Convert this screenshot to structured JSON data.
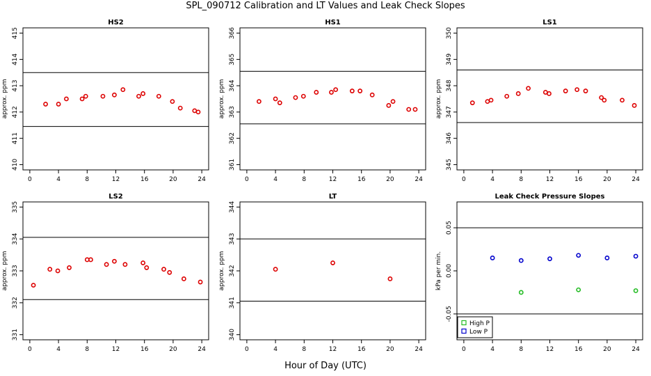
{
  "page": {
    "title": "SPL_090712  Calibration and LT Values and Leak Check Slopes",
    "x_axis_title": "Hour of Day (UTC)"
  },
  "colors": {
    "red": "#dd0000",
    "green": "#22bb22",
    "blue": "#0000cc",
    "line": "#000000"
  },
  "chart_data": [
    {
      "type": "scatter",
      "title": "HS2",
      "ylabel": "approx. ppm",
      "xlim": [
        0,
        24
      ],
      "ylim": [
        410,
        415
      ],
      "xticks": [
        0,
        4,
        8,
        12,
        16,
        20,
        24
      ],
      "yticks": [
        410,
        411,
        412,
        413,
        414,
        415
      ],
      "hlines": [
        413.5,
        411.45
      ],
      "series": [
        {
          "color": "red",
          "x": [
            2.2,
            4.0,
            5.1,
            7.3,
            7.8,
            10.2,
            11.8,
            13.0,
            15.2,
            15.8,
            18.0,
            19.9,
            21.0,
            23.0,
            23.5
          ],
          "y": [
            412.3,
            412.3,
            412.5,
            412.5,
            412.6,
            412.6,
            412.65,
            412.85,
            412.6,
            412.7,
            412.6,
            412.4,
            412.15,
            412.05,
            412.0
          ]
        }
      ]
    },
    {
      "type": "scatter",
      "title": "HS1",
      "ylabel": "approx. ppm",
      "xlim": [
        0,
        24
      ],
      "ylim": [
        361,
        366
      ],
      "xticks": [
        0,
        4,
        8,
        12,
        16,
        20,
        24
      ],
      "yticks": [
        361,
        362,
        363,
        364,
        365,
        366
      ],
      "hlines": [
        364.55,
        362.55
      ],
      "series": [
        {
          "color": "red",
          "x": [
            1.7,
            4.0,
            4.6,
            6.8,
            7.9,
            9.7,
            11.8,
            12.4,
            14.7,
            15.8,
            17.5,
            19.8,
            20.4,
            22.6,
            23.5
          ],
          "y": [
            363.4,
            363.5,
            363.35,
            363.55,
            363.6,
            363.75,
            363.75,
            363.85,
            363.8,
            363.8,
            363.65,
            363.25,
            363.4,
            363.1,
            363.1
          ]
        }
      ]
    },
    {
      "type": "scatter",
      "title": "LS1",
      "ylabel": "approx. ppm",
      "xlim": [
        0,
        24
      ],
      "ylim": [
        345,
        350
      ],
      "xticks": [
        0,
        4,
        8,
        12,
        16,
        20,
        24
      ],
      "yticks": [
        345,
        346,
        347,
        348,
        349,
        350
      ],
      "hlines": [
        348.6,
        346.6
      ],
      "series": [
        {
          "color": "red",
          "x": [
            1.2,
            3.3,
            3.8,
            6.0,
            7.6,
            9.0,
            11.4,
            11.9,
            14.2,
            15.8,
            17.0,
            19.2,
            19.6,
            22.1,
            23.8
          ],
          "y": [
            347.35,
            347.4,
            347.45,
            347.6,
            347.7,
            347.9,
            347.75,
            347.7,
            347.8,
            347.85,
            347.8,
            347.55,
            347.45,
            347.45,
            347.25
          ]
        }
      ]
    },
    {
      "type": "scatter",
      "title": "LS2",
      "ylabel": "approx. ppm",
      "xlim": [
        0,
        24
      ],
      "ylim": [
        331,
        335
      ],
      "xticks": [
        0,
        4,
        8,
        12,
        16,
        20,
        24
      ],
      "yticks": [
        331,
        332,
        333,
        334,
        335
      ],
      "hlines": [
        334.05,
        332.1
      ],
      "series": [
        {
          "color": "red",
          "x": [
            0.5,
            2.8,
            3.9,
            5.5,
            8.0,
            8.5,
            10.7,
            11.8,
            13.3,
            15.8,
            16.3,
            18.7,
            19.5,
            21.5,
            23.8
          ],
          "y": [
            332.55,
            333.05,
            333.0,
            333.1,
            333.35,
            333.35,
            333.2,
            333.3,
            333.2,
            333.25,
            333.1,
            333.05,
            332.95,
            332.75,
            332.65
          ]
        }
      ]
    },
    {
      "type": "scatter",
      "title": "LT",
      "ylabel": "approx. ppm",
      "xlim": [
        0,
        24
      ],
      "ylim": [
        340,
        344
      ],
      "xticks": [
        0,
        4,
        8,
        12,
        16,
        20,
        24
      ],
      "yticks": [
        340,
        341,
        342,
        343,
        344
      ],
      "hlines": [
        343.0,
        341.05
      ],
      "series": [
        {
          "color": "red",
          "x": [
            4.0,
            12.0,
            20.0
          ],
          "y": [
            342.05,
            342.25,
            341.75
          ]
        }
      ]
    },
    {
      "type": "scatter",
      "title": "Leak Check Pressure Slopes",
      "ylabel": "kPa per min.",
      "xlim": [
        0,
        24
      ],
      "ylim": [
        -0.05,
        0.05
      ],
      "xticks": [
        0,
        4,
        8,
        12,
        16,
        20,
        24
      ],
      "yticks": [
        -0.05,
        0.0,
        0.05
      ],
      "ytick_labels": [
        "-0.05",
        "0.00",
        "0.05"
      ],
      "hlines": [
        0.05,
        -0.05
      ],
      "legend": {
        "placement": "bottom-left"
      },
      "series": [
        {
          "name": "High P",
          "color": "green",
          "x": [
            8.0,
            16.0,
            24.0
          ],
          "y": [
            -0.025,
            -0.022,
            -0.023
          ]
        },
        {
          "name": "Low P",
          "color": "blue",
          "x": [
            4.0,
            8.0,
            12.0,
            16.0,
            20.0,
            24.0
          ],
          "y": [
            0.015,
            0.012,
            0.014,
            0.018,
            0.015,
            0.017
          ]
        }
      ]
    }
  ]
}
